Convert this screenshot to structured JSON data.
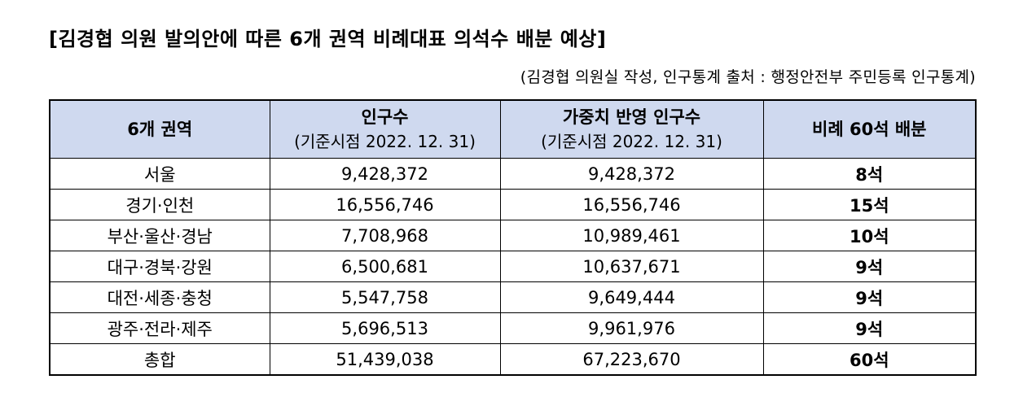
{
  "title": "[김경협 의원 발의안에 따른 6개 권역 비례대표 의석수 배분 예상]",
  "source_note": "(김경협 의원실 작성, 인구통계 출처 : 행정안전부 주민등록 인구통계)",
  "table": {
    "headers": {
      "region": "6개 권역",
      "population": "인구수",
      "population_sub": "(기준시점 2022. 12. 31)",
      "weighted": "가중치 반영 인구수",
      "weighted_sub": "(기준시점 2022. 12. 31)",
      "seats": "비례 60석 배분"
    },
    "rows": [
      {
        "region": "서울",
        "population": "9,428,372",
        "weighted": "9,428,372",
        "seats": "8석"
      },
      {
        "region": "경기·인천",
        "population": "16,556,746",
        "weighted": "16,556,746",
        "seats": "15석"
      },
      {
        "region": "부산·울산·경남",
        "population": "7,708,968",
        "weighted": "10,989,461",
        "seats": "10석"
      },
      {
        "region": "대구·경북·강원",
        "population": "6,500,681",
        "weighted": "10,637,671",
        "seats": "9석"
      },
      {
        "region": "대전·세종·충청",
        "population": "5,547,758",
        "weighted": "9,649,444",
        "seats": "9석"
      },
      {
        "region": "광주·전라·제주",
        "population": "5,696,513",
        "weighted": "9,961,976",
        "seats": "9석"
      },
      {
        "region": "총합",
        "population": "51,439,038",
        "weighted": "67,223,670",
        "seats": "60석"
      }
    ]
  },
  "colors": {
    "header_bg": "#cfd9ef"
  }
}
